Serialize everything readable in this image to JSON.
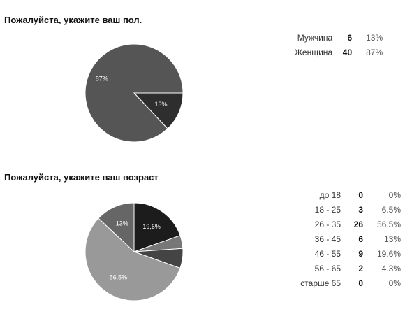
{
  "chart_data": [
    {
      "type": "pie",
      "title": "Пожалуйста, укажите ваш пол.",
      "categories": [
        "Мужчина",
        "Женщина"
      ],
      "counts": [
        6,
        40
      ],
      "percent_labels": [
        "13%",
        "87%"
      ],
      "slice_labels": [
        "13%",
        "87%"
      ],
      "values": [
        13,
        87
      ],
      "colors": [
        "#2e2e2e",
        "#555555"
      ],
      "legend_position": "right"
    },
    {
      "type": "pie",
      "title": "Пожалуйста, укажите ваш возраст",
      "categories": [
        "до 18",
        "18 - 25",
        "26 - 35",
        "36 - 45",
        "46 - 55",
        "56 - 65",
        "старше 65"
      ],
      "counts": [
        0,
        3,
        26,
        6,
        9,
        2,
        0
      ],
      "percent_labels": [
        "0%",
        "6.5%",
        "56.5%",
        "13%",
        "19.6%",
        "4.3%",
        "0%"
      ],
      "slice_labels": [
        "",
        "",
        "56,5%",
        "13%",
        "19,6%",
        "",
        ""
      ],
      "values": [
        0,
        6.5,
        56.5,
        13,
        19.6,
        4.3,
        0
      ],
      "colors": [
        "#888888",
        "#444444",
        "#999999",
        "#666666",
        "#1c1c1c",
        "#777777",
        "#aaaaaa"
      ],
      "legend_position": "right"
    }
  ]
}
